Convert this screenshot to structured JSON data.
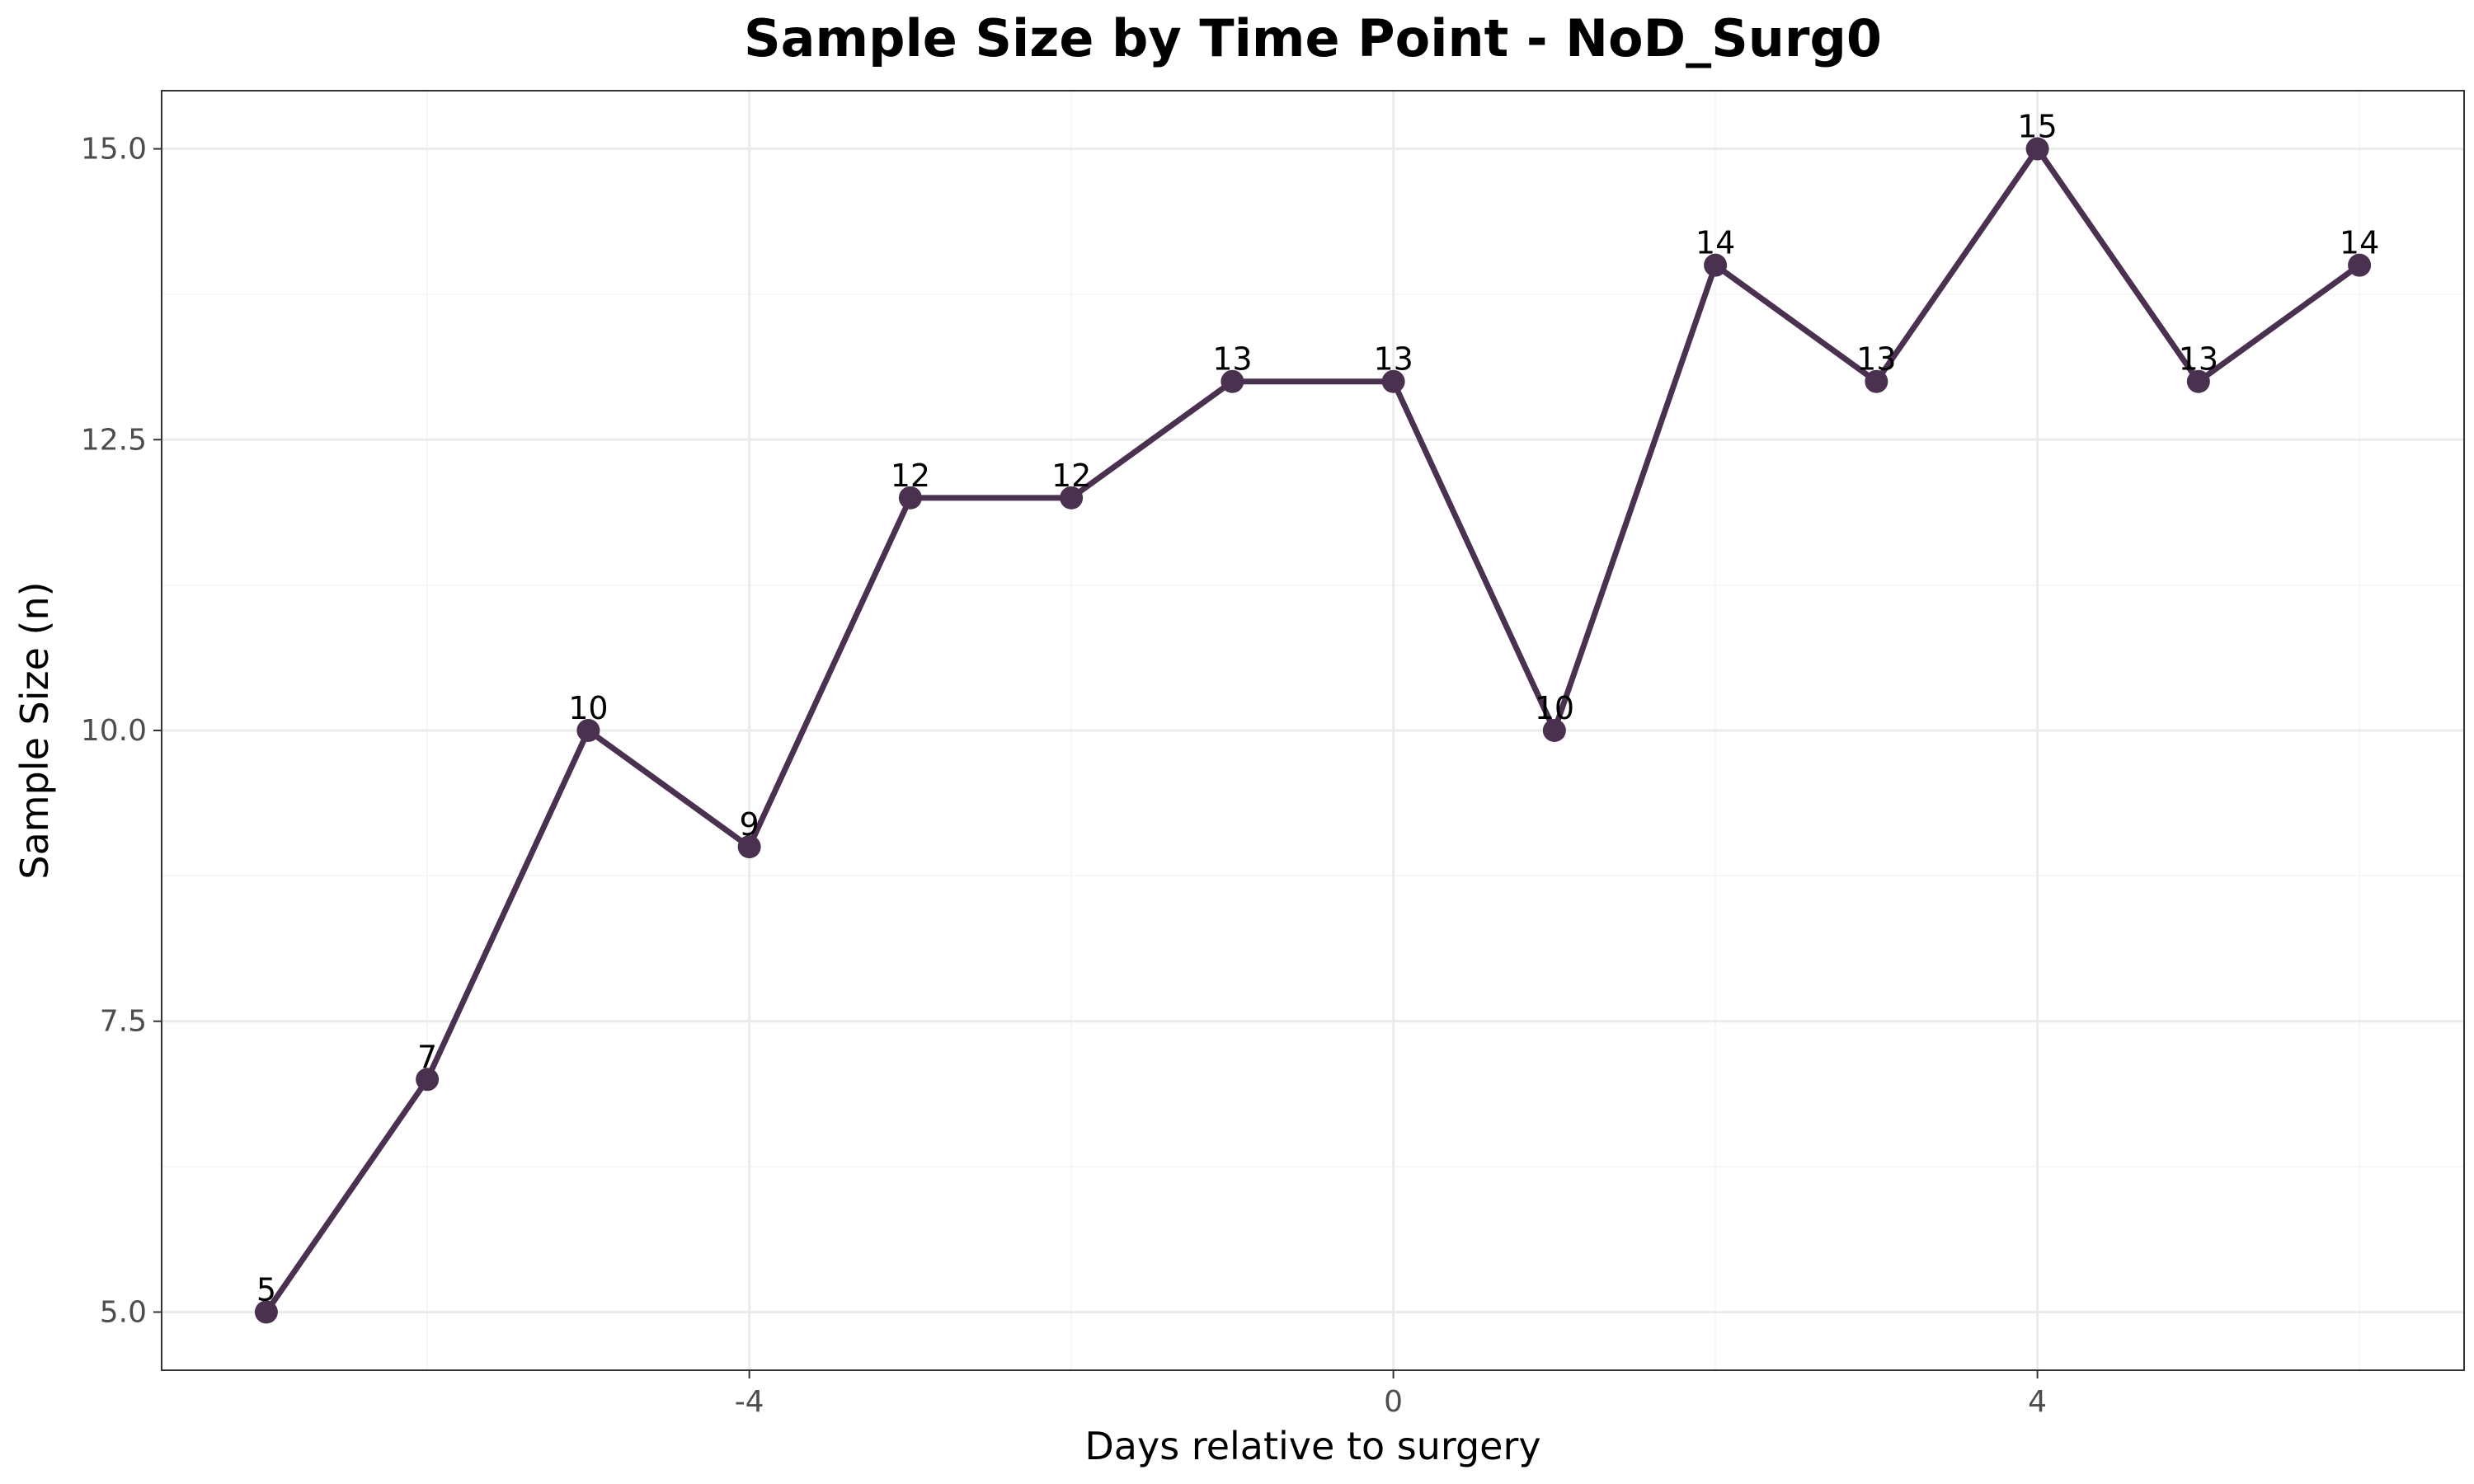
{
  "chart_data": {
    "type": "line",
    "title": "Sample Size by Time Point - NoD_Surg0",
    "xlabel": "Days relative to surgery",
    "ylabel": "Sample Size (n)",
    "x": [
      -7,
      -6,
      -5,
      -4,
      -3,
      -2,
      -1,
      0,
      1,
      2,
      3,
      4,
      5,
      6
    ],
    "values": [
      5,
      7,
      10,
      9,
      12,
      12,
      13,
      13,
      10,
      14,
      13,
      15,
      13,
      14
    ],
    "data_labels": [
      "5",
      "7",
      "10",
      "9",
      "12",
      "12",
      "13",
      "13",
      "10",
      "14",
      "13",
      "15",
      "13",
      "14"
    ],
    "xlim": [
      -7.65,
      6.65
    ],
    "ylim": [
      4.5,
      15.5
    ],
    "x_ticks": [
      -4,
      0,
      4
    ],
    "x_tick_labels": [
      "-4",
      "0",
      "4"
    ],
    "x_minor_ticks": [
      -6,
      -2,
      2,
      6
    ],
    "y_ticks": [
      5.0,
      7.5,
      10.0,
      12.5,
      15.0
    ],
    "y_tick_labels": [
      "5.0",
      "7.5",
      "10.0",
      "12.5",
      "15.0"
    ],
    "y_minor_ticks": [
      6.25,
      8.75,
      11.25,
      13.75
    ],
    "grid": true,
    "line_color": "#4b3150",
    "point_color": "#4b3150"
  }
}
